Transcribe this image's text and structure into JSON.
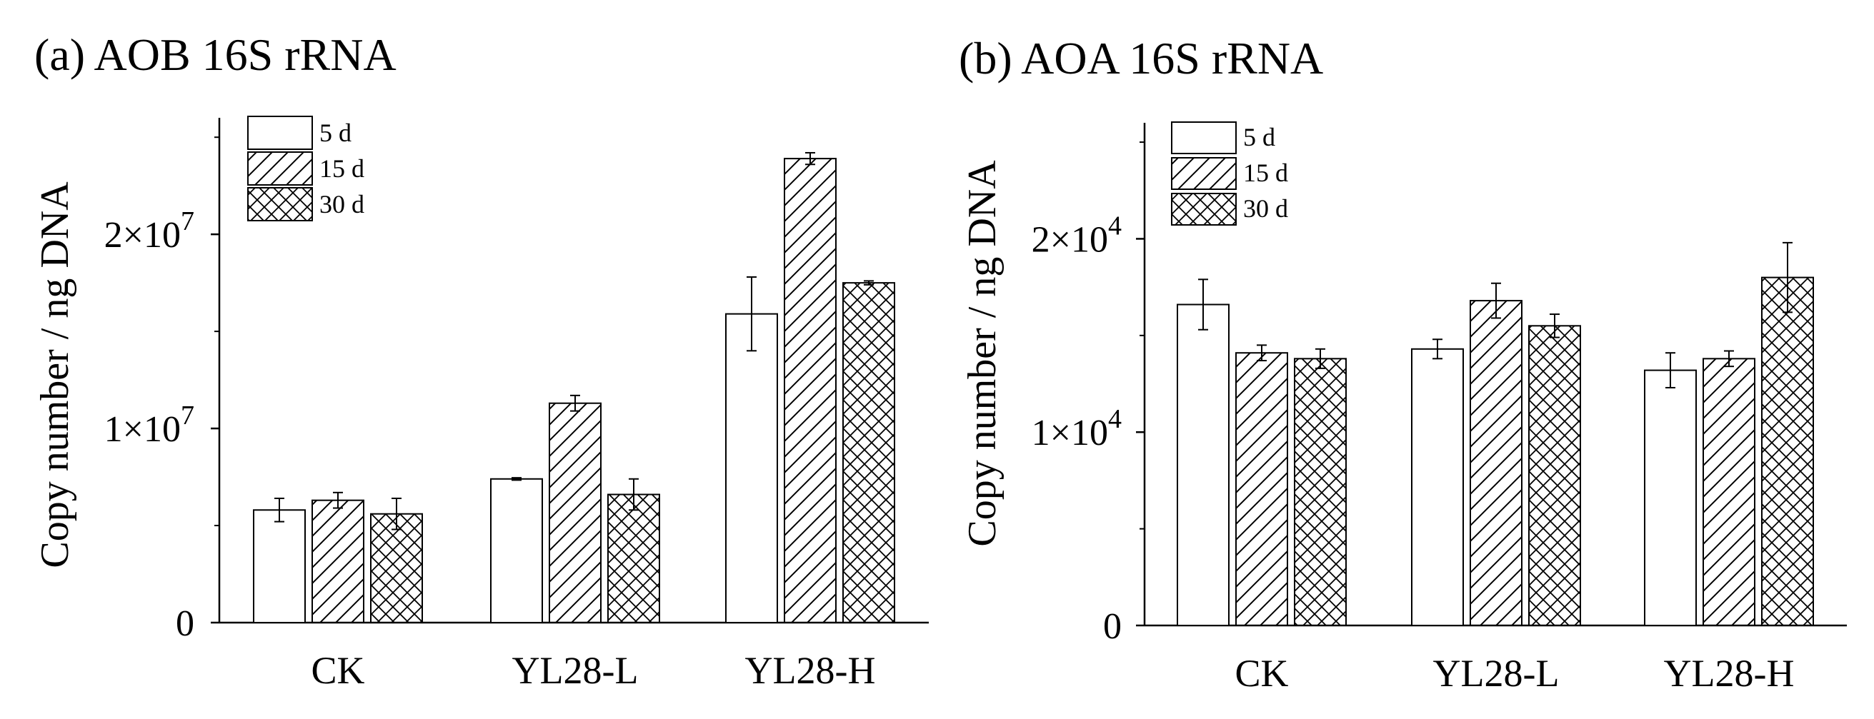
{
  "chart_data": [
    {
      "type": "bar",
      "title": "(a) AOB 16S rRNA",
      "ylabel": "Copy number / ng DNA",
      "xlabel": "",
      "categories": [
        "CK",
        "YL28-L",
        "YL28-H"
      ],
      "ylim": [
        0,
        26000000
      ],
      "yticks": [
        {
          "value": 0,
          "mant": "0",
          "exp": ""
        },
        {
          "value": 10000000,
          "mant": "1×10",
          "exp": "7"
        },
        {
          "value": 20000000,
          "mant": "2×10",
          "exp": "7"
        }
      ],
      "minor_ticks": [
        5000000,
        15000000,
        25000000
      ],
      "legend_position": "top-left",
      "series": [
        {
          "name": "5 d",
          "pattern": "none",
          "values": [
            5800000,
            7400000,
            15900000
          ],
          "errors": [
            600000,
            60000,
            1900000
          ]
        },
        {
          "name": "15 d",
          "pattern": "hatch",
          "values": [
            6300000,
            11300000,
            23900000
          ],
          "errors": [
            400000,
            400000,
            300000
          ]
        },
        {
          "name": "30 d",
          "pattern": "crosshatch",
          "values": [
            5600000,
            6600000,
            17500000
          ],
          "errors": [
            800000,
            800000,
            100000
          ]
        }
      ]
    },
    {
      "type": "bar",
      "title": "(b) AOA 16S rRNA",
      "ylabel": "Copy number / ng DNA",
      "xlabel": "",
      "categories": [
        "CK",
        "YL28-L",
        "YL28-H"
      ],
      "ylim": [
        0,
        26000
      ],
      "yticks": [
        {
          "value": 0,
          "mant": "0",
          "exp": ""
        },
        {
          "value": 10000,
          "mant": "1×10",
          "exp": "4"
        },
        {
          "value": 20000,
          "mant": "2×10",
          "exp": "4"
        }
      ],
      "minor_ticks": [
        5000,
        15000,
        25000
      ],
      "legend_position": "top-left",
      "series": [
        {
          "name": "5 d",
          "pattern": "none",
          "values": [
            16600,
            14300,
            13200
          ],
          "errors": [
            1300,
            500,
            900
          ]
        },
        {
          "name": "15 d",
          "pattern": "hatch",
          "values": [
            14100,
            16800,
            13800
          ],
          "errors": [
            400,
            900,
            400
          ]
        },
        {
          "name": "30 d",
          "pattern": "crosshatch",
          "values": [
            13800,
            15500,
            18000
          ],
          "errors": [
            500,
            600,
            1800
          ]
        }
      ]
    }
  ]
}
